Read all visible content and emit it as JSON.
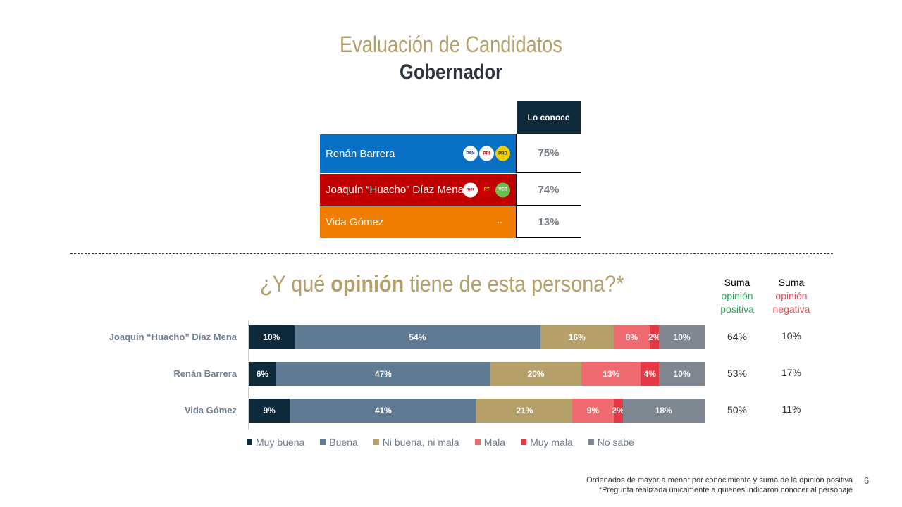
{
  "header": {
    "title": "Evaluación de Candidatos",
    "subtitle": "Gobernador"
  },
  "recognition": {
    "column_header": "Lo conoce",
    "rows": [
      {
        "name": "Renán Barrera",
        "value": "75%",
        "color": "#0870c4",
        "logos": [
          "PAN",
          "PRI",
          "PRD"
        ]
      },
      {
        "name": "Joaquín “Huacho” Díaz Mena",
        "value": "74%",
        "color": "#c00000",
        "logos": [
          "morena",
          "PT",
          "VERDE"
        ]
      },
      {
        "name": "Vida Gómez",
        "value": "13%",
        "color": "#f07c00",
        "logos": [
          "MOVIMIENTO CIUDADANO"
        ]
      }
    ]
  },
  "question": {
    "pre": "¿Y qué ",
    "bold": "opinión",
    "post": " tiene de esta persona?*"
  },
  "sums": {
    "pos_top": "Suma",
    "pos_bottom": "opinión positiva",
    "neg_top": "Suma",
    "neg_bottom": "opinión negativa",
    "pos_color": "#2aa65a",
    "neg_color": "#e94b52"
  },
  "chart_data": {
    "type": "bar",
    "orientation": "horizontal",
    "stacked": true,
    "categories": [
      "Joaquín “Huacho” Díaz Mena",
      "Renán Barrera",
      "Vida Gómez"
    ],
    "series": [
      {
        "name": "Muy buena",
        "color": "#0d2a3a",
        "values": [
          10,
          6,
          9
        ]
      },
      {
        "name": "Buena",
        "color": "#5f7b93",
        "values": [
          54,
          47,
          41
        ]
      },
      {
        "name": "Ni buena, ni mala",
        "color": "#b5a06a",
        "values": [
          16,
          20,
          21
        ]
      },
      {
        "name": "Mala",
        "color": "#ef6a6f",
        "values": [
          8,
          13,
          9
        ]
      },
      {
        "name": "Muy mala",
        "color": "#e63946",
        "values": [
          2,
          4,
          2
        ]
      },
      {
        "name": "No sabe",
        "color": "#7f8891",
        "values": [
          10,
          10,
          18
        ]
      }
    ],
    "sum_positive": [
      "64%",
      "53%",
      "50%"
    ],
    "sum_negative": [
      "10%",
      "17%",
      "11%"
    ],
    "unit": "%",
    "legend": "bottom"
  },
  "footer": {
    "line1": "Ordenados de mayor a menor por conocimiento y suma de la opinión positiva",
    "line2": "*Pregunta realizada únicamente a quienes indicaron conocer al personaje",
    "page": "6"
  }
}
